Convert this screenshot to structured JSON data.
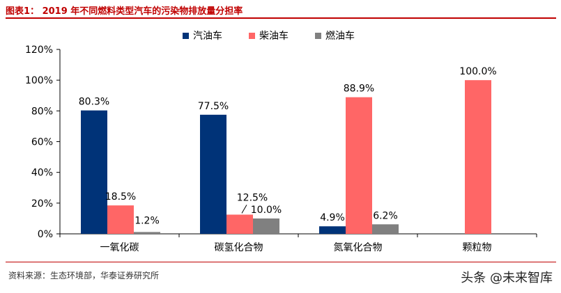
{
  "figure": {
    "label": "图表1：",
    "title": "2019 年不同燃料类型汽车的污染物排放量分担率"
  },
  "source": "资料来源：生态环境部，华泰证券研究所",
  "watermark": "头条 @未来智库",
  "chart_data": {
    "type": "bar",
    "categories": [
      "一氧化碳",
      "碳氢化合物",
      "氮氧化合物",
      "颗粒物"
    ],
    "series": [
      {
        "name": "汽油车",
        "color": "#003378",
        "values": [
          80.3,
          77.5,
          4.9,
          null
        ],
        "labels": [
          "80.3%",
          "77.5%",
          "4.9%",
          ""
        ]
      },
      {
        "name": "柴油车",
        "color": "#ff6666",
        "values": [
          18.5,
          12.5,
          88.9,
          100.0
        ],
        "labels": [
          "18.5%",
          "12.5%",
          "88.9%",
          "100.0%"
        ]
      },
      {
        "name": "燃油车",
        "color": "#808080",
        "values": [
          1.2,
          10.0,
          6.2,
          null
        ],
        "labels": [
          "1.2%",
          "10.0%",
          "6.2%",
          ""
        ]
      }
    ],
    "ylim": [
      0,
      120
    ],
    "yticks": [
      "0%",
      "20%",
      "40%",
      "60%",
      "80%",
      "100%",
      "120%"
    ],
    "legend_position": "top",
    "grid": false
  }
}
